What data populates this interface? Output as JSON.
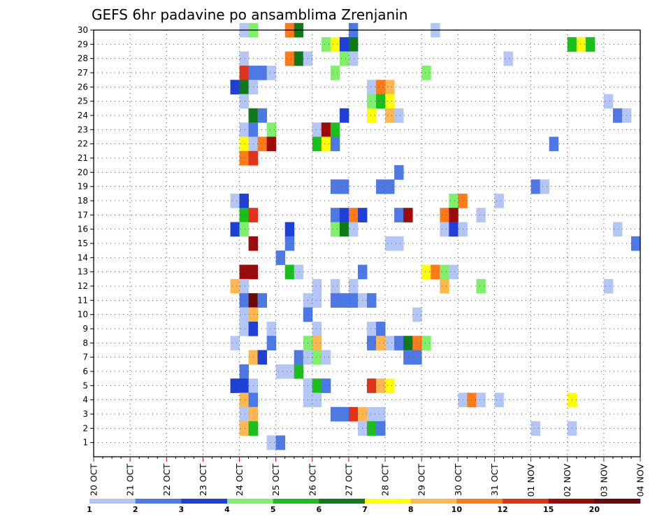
{
  "chart_data": {
    "type": "heatmap",
    "title": "GEFS 6hr padavine po ansamblima Zrenjanin",
    "xlabel": "",
    "ylabel": "",
    "x_ticks": [
      "20 OCT",
      "21 OCT",
      "22 OCT",
      "23 OCT",
      "24 OCT",
      "25 OCT",
      "26 OCT",
      "27 OCT",
      "28 OCT",
      "29 OCT",
      "30 OCT",
      "31 OCT",
      "01 NOV",
      "02 NOV",
      "03 NOV",
      "04 NOV"
    ],
    "xlim_days": [
      0,
      15
    ],
    "time_step_hours": 6,
    "y_ticks": [
      1,
      2,
      3,
      4,
      5,
      6,
      7,
      8,
      9,
      10,
      11,
      12,
      13,
      14,
      15,
      16,
      17,
      18,
      19,
      20,
      21,
      22,
      23,
      24,
      25,
      26,
      27,
      28,
      29,
      30
    ],
    "ylim": [
      0,
      30
    ],
    "grid": true,
    "legend_position": "bottom",
    "colorbar": {
      "labels": [
        "1",
        "2",
        "3",
        "4",
        "5",
        "6",
        "7",
        "8",
        "10",
        "12",
        "15",
        "20"
      ],
      "colors": [
        "#b3c6f5",
        "#4d79e6",
        "#1f3fd9",
        "#7ef06a",
        "#19c019",
        "#0f7a1a",
        "#ffff00",
        "#ffb84d",
        "#ff7a19",
        "#e3321b",
        "#9c0a0a",
        "#6b0a0a"
      ]
    },
    "cells": [
      {
        "member": 30,
        "t": 16,
        "v": 1.5
      },
      {
        "member": 30,
        "t": 17,
        "v": 4.5
      },
      {
        "member": 30,
        "t": 21,
        "v": 11
      },
      {
        "member": 30,
        "t": 22,
        "v": 6.5
      },
      {
        "member": 30,
        "t": 28,
        "v": 2.5
      },
      {
        "member": 30,
        "t": 37,
        "v": 1.5
      },
      {
        "member": 29,
        "t": 25,
        "v": 4.5
      },
      {
        "member": 29,
        "t": 26,
        "v": 7.5
      },
      {
        "member": 29,
        "t": 27,
        "v": 3.5
      },
      {
        "member": 29,
        "t": 28,
        "v": 6.5
      },
      {
        "member": 29,
        "t": 52,
        "v": 5.5
      },
      {
        "member": 29,
        "t": 53,
        "v": 7.5
      },
      {
        "member": 29,
        "t": 54,
        "v": 5.5
      },
      {
        "member": 28,
        "t": 16,
        "v": 1.5
      },
      {
        "member": 28,
        "t": 21,
        "v": 11
      },
      {
        "member": 28,
        "t": 22,
        "v": 6.5
      },
      {
        "member": 28,
        "t": 23,
        "v": 1.5
      },
      {
        "member": 28,
        "t": 27,
        "v": 4.5
      },
      {
        "member": 28,
        "t": 28,
        "v": 1.5
      },
      {
        "member": 28,
        "t": 45,
        "v": 1.5
      },
      {
        "member": 27,
        "t": 16,
        "v": 13
      },
      {
        "member": 27,
        "t": 17,
        "v": 2.5
      },
      {
        "member": 27,
        "t": 18,
        "v": 2.5
      },
      {
        "member": 27,
        "t": 19,
        "v": 1.5
      },
      {
        "member": 27,
        "t": 26,
        "v": 4.5
      },
      {
        "member": 27,
        "t": 36,
        "v": 4.5
      },
      {
        "member": 26,
        "t": 15,
        "v": 3.5
      },
      {
        "member": 26,
        "t": 16,
        "v": 6.5
      },
      {
        "member": 26,
        "t": 17,
        "v": 1.5
      },
      {
        "member": 26,
        "t": 30,
        "v": 1.5
      },
      {
        "member": 26,
        "t": 31,
        "v": 11
      },
      {
        "member": 26,
        "t": 32,
        "v": 9
      },
      {
        "member": 25,
        "t": 16,
        "v": 1.5
      },
      {
        "member": 25,
        "t": 30,
        "v": 4.5
      },
      {
        "member": 25,
        "t": 31,
        "v": 5.5
      },
      {
        "member": 25,
        "t": 32,
        "v": 7.5
      },
      {
        "member": 25,
        "t": 56,
        "v": 1.5
      },
      {
        "member": 24,
        "t": 17,
        "v": 6.5
      },
      {
        "member": 24,
        "t": 18,
        "v": 2.5
      },
      {
        "member": 24,
        "t": 27,
        "v": 3.5
      },
      {
        "member": 24,
        "t": 30,
        "v": 7.5
      },
      {
        "member": 24,
        "t": 32,
        "v": 9
      },
      {
        "member": 24,
        "t": 33,
        "v": 1.5
      },
      {
        "member": 24,
        "t": 57,
        "v": 2.5
      },
      {
        "member": 24,
        "t": 58,
        "v": 1.5
      },
      {
        "member": 23,
        "t": 16,
        "v": 1.5
      },
      {
        "member": 23,
        "t": 17,
        "v": 2.5
      },
      {
        "member": 23,
        "t": 19,
        "v": 4.5
      },
      {
        "member": 23,
        "t": 24,
        "v": 1.5
      },
      {
        "member": 23,
        "t": 25,
        "v": 17
      },
      {
        "member": 23,
        "t": 26,
        "v": 5.5
      },
      {
        "member": 22,
        "t": 16,
        "v": 7.5
      },
      {
        "member": 22,
        "t": 17,
        "v": 1.5
      },
      {
        "member": 22,
        "t": 18,
        "v": 11
      },
      {
        "member": 22,
        "t": 19,
        "v": 17
      },
      {
        "member": 22,
        "t": 24,
        "v": 5.5
      },
      {
        "member": 22,
        "t": 25,
        "v": 7.5
      },
      {
        "member": 22,
        "t": 26,
        "v": 2.5
      },
      {
        "member": 22,
        "t": 50,
        "v": 2.5
      },
      {
        "member": 21,
        "t": 16,
        "v": 11
      },
      {
        "member": 21,
        "t": 17,
        "v": 13
      },
      {
        "member": 20,
        "t": 33,
        "v": 2.5
      },
      {
        "member": 19,
        "t": 26,
        "v": 2.5
      },
      {
        "member": 19,
        "t": 27,
        "v": 2.5
      },
      {
        "member": 19,
        "t": 31,
        "v": 2.5
      },
      {
        "member": 19,
        "t": 32,
        "v": 2.5
      },
      {
        "member": 19,
        "t": 48,
        "v": 2.5
      },
      {
        "member": 19,
        "t": 49,
        "v": 1.5
      },
      {
        "member": 18,
        "t": 15,
        "v": 1.5
      },
      {
        "member": 18,
        "t": 16,
        "v": 3.5
      },
      {
        "member": 18,
        "t": 39,
        "v": 4.5
      },
      {
        "member": 18,
        "t": 40,
        "v": 11
      },
      {
        "member": 18,
        "t": 44,
        "v": 1.5
      },
      {
        "member": 17,
        "t": 16,
        "v": 5.5
      },
      {
        "member": 17,
        "t": 17,
        "v": 13
      },
      {
        "member": 17,
        "t": 26,
        "v": 2.5
      },
      {
        "member": 17,
        "t": 27,
        "v": 3.5
      },
      {
        "member": 17,
        "t": 28,
        "v": 11
      },
      {
        "member": 17,
        "t": 29,
        "v": 3.5
      },
      {
        "member": 17,
        "t": 33,
        "v": 2.5
      },
      {
        "member": 17,
        "t": 34,
        "v": 17
      },
      {
        "member": 17,
        "t": 38,
        "v": 11
      },
      {
        "member": 17,
        "t": 39,
        "v": 17
      },
      {
        "member": 17,
        "t": 42,
        "v": 1.5
      },
      {
        "member": 16,
        "t": 15,
        "v": 3.5
      },
      {
        "member": 16,
        "t": 16,
        "v": 4.5
      },
      {
        "member": 16,
        "t": 21,
        "v": 3.5
      },
      {
        "member": 16,
        "t": 26,
        "v": 4.5
      },
      {
        "member": 16,
        "t": 27,
        "v": 6.5
      },
      {
        "member": 16,
        "t": 28,
        "v": 1.5
      },
      {
        "member": 16,
        "t": 38,
        "v": 1.5
      },
      {
        "member": 16,
        "t": 39,
        "v": 3.5
      },
      {
        "member": 16,
        "t": 40,
        "v": 1.5
      },
      {
        "member": 16,
        "t": 57,
        "v": 1.5
      },
      {
        "member": 15,
        "t": 17,
        "v": 17
      },
      {
        "member": 15,
        "t": 21,
        "v": 2.5
      },
      {
        "member": 15,
        "t": 32,
        "v": 1.5
      },
      {
        "member": 15,
        "t": 33,
        "v": 1.5
      },
      {
        "member": 15,
        "t": 59,
        "v": 2.5
      },
      {
        "member": 14,
        "t": 20,
        "v": 2.5
      },
      {
        "member": 13,
        "t": 16,
        "v": 17
      },
      {
        "member": 13,
        "t": 17,
        "v": 17
      },
      {
        "member": 13,
        "t": 21,
        "v": 5.5
      },
      {
        "member": 13,
        "t": 22,
        "v": 1.5
      },
      {
        "member": 13,
        "t": 29,
        "v": 2.5
      },
      {
        "member": 13,
        "t": 36,
        "v": 7.5
      },
      {
        "member": 13,
        "t": 37,
        "v": 11
      },
      {
        "member": 13,
        "t": 38,
        "v": 4.5
      },
      {
        "member": 13,
        "t": 39,
        "v": 1.5
      },
      {
        "member": 12,
        "t": 15,
        "v": 9
      },
      {
        "member": 12,
        "t": 16,
        "v": 1.5
      },
      {
        "member": 12,
        "t": 24,
        "v": 1.5
      },
      {
        "member": 12,
        "t": 26,
        "v": 1.5
      },
      {
        "member": 12,
        "t": 28,
        "v": 1.5
      },
      {
        "member": 12,
        "t": 38,
        "v": 9
      },
      {
        "member": 12,
        "t": 42,
        "v": 4.5
      },
      {
        "member": 12,
        "t": 56,
        "v": 1.5
      },
      {
        "member": 11,
        "t": 16,
        "v": 2.5
      },
      {
        "member": 11,
        "t": 17,
        "v": 25
      },
      {
        "member": 11,
        "t": 18,
        "v": 2.5
      },
      {
        "member": 11,
        "t": 23,
        "v": 1.5
      },
      {
        "member": 11,
        "t": 24,
        "v": 1.5
      },
      {
        "member": 11,
        "t": 26,
        "v": 2.5
      },
      {
        "member": 11,
        "t": 27,
        "v": 2.5
      },
      {
        "member": 11,
        "t": 28,
        "v": 2.5
      },
      {
        "member": 11,
        "t": 29,
        "v": 1.5
      },
      {
        "member": 11,
        "t": 30,
        "v": 2.5
      },
      {
        "member": 10,
        "t": 16,
        "v": 1.5
      },
      {
        "member": 10,
        "t": 17,
        "v": 9
      },
      {
        "member": 10,
        "t": 23,
        "v": 2.5
      },
      {
        "member": 10,
        "t": 35,
        "v": 1.5
      },
      {
        "member": 9,
        "t": 16,
        "v": 1.5
      },
      {
        "member": 9,
        "t": 17,
        "v": 3.5
      },
      {
        "member": 9,
        "t": 19,
        "v": 1.5
      },
      {
        "member": 9,
        "t": 24,
        "v": 1.5
      },
      {
        "member": 9,
        "t": 30,
        "v": 1.5
      },
      {
        "member": 9,
        "t": 31,
        "v": 2.5
      },
      {
        "member": 8,
        "t": 15,
        "v": 1.5
      },
      {
        "member": 8,
        "t": 19,
        "v": 2.5
      },
      {
        "member": 8,
        "t": 23,
        "v": 4.5
      },
      {
        "member": 8,
        "t": 24,
        "v": 9
      },
      {
        "member": 8,
        "t": 30,
        "v": 2.5
      },
      {
        "member": 8,
        "t": 31,
        "v": 9
      },
      {
        "member": 8,
        "t": 32,
        "v": 1.5
      },
      {
        "member": 8,
        "t": 33,
        "v": 2.5
      },
      {
        "member": 8,
        "t": 34,
        "v": 6.5
      },
      {
        "member": 8,
        "t": 35,
        "v": 11
      },
      {
        "member": 8,
        "t": 36,
        "v": 4.5
      },
      {
        "member": 7,
        "t": 17,
        "v": 9
      },
      {
        "member": 7,
        "t": 18,
        "v": 3.5
      },
      {
        "member": 7,
        "t": 22,
        "v": 2.5
      },
      {
        "member": 7,
        "t": 23,
        "v": 1.5
      },
      {
        "member": 7,
        "t": 24,
        "v": 4.5
      },
      {
        "member": 7,
        "t": 25,
        "v": 1.5
      },
      {
        "member": 7,
        "t": 34,
        "v": 2.5
      },
      {
        "member": 7,
        "t": 35,
        "v": 2.5
      },
      {
        "member": 6,
        "t": 16,
        "v": 2.5
      },
      {
        "member": 6,
        "t": 20,
        "v": 1.5
      },
      {
        "member": 6,
        "t": 21,
        "v": 1.5
      },
      {
        "member": 6,
        "t": 22,
        "v": 5.5
      },
      {
        "member": 5,
        "t": 15,
        "v": 3.5
      },
      {
        "member": 5,
        "t": 16,
        "v": 3.5
      },
      {
        "member": 5,
        "t": 17,
        "v": 1.5
      },
      {
        "member": 5,
        "t": 23,
        "v": 1.5
      },
      {
        "member": 5,
        "t": 24,
        "v": 5.5
      },
      {
        "member": 5,
        "t": 25,
        "v": 2.5
      },
      {
        "member": 5,
        "t": 30,
        "v": 13
      },
      {
        "member": 5,
        "t": 31,
        "v": 9
      },
      {
        "member": 5,
        "t": 32,
        "v": 7.5
      },
      {
        "member": 4,
        "t": 16,
        "v": 9
      },
      {
        "member": 4,
        "t": 17,
        "v": 2.5
      },
      {
        "member": 4,
        "t": 23,
        "v": 1.5
      },
      {
        "member": 4,
        "t": 24,
        "v": 1.5
      },
      {
        "member": 4,
        "t": 40,
        "v": 1.5
      },
      {
        "member": 4,
        "t": 41,
        "v": 11
      },
      {
        "member": 4,
        "t": 42,
        "v": 1.5
      },
      {
        "member": 4,
        "t": 44,
        "v": 1.5
      },
      {
        "member": 4,
        "t": 52,
        "v": 7.5
      },
      {
        "member": 3,
        "t": 16,
        "v": 1.5
      },
      {
        "member": 3,
        "t": 17,
        "v": 9
      },
      {
        "member": 3,
        "t": 26,
        "v": 2.5
      },
      {
        "member": 3,
        "t": 27,
        "v": 2.5
      },
      {
        "member": 3,
        "t": 28,
        "v": 13
      },
      {
        "member": 3,
        "t": 29,
        "v": 9
      },
      {
        "member": 3,
        "t": 30,
        "v": 1.5
      },
      {
        "member": 3,
        "t": 31,
        "v": 1.5
      },
      {
        "member": 2,
        "t": 16,
        "v": 9
      },
      {
        "member": 2,
        "t": 17,
        "v": 5.5
      },
      {
        "member": 2,
        "t": 29,
        "v": 1.5
      },
      {
        "member": 2,
        "t": 30,
        "v": 5.5
      },
      {
        "member": 2,
        "t": 31,
        "v": 2.5
      },
      {
        "member": 2,
        "t": 48,
        "v": 1.5
      },
      {
        "member": 2,
        "t": 52,
        "v": 1.5
      },
      {
        "member": 1,
        "t": 19,
        "v": 1.5
      },
      {
        "member": 1,
        "t": 20,
        "v": 2.5
      }
    ]
  }
}
